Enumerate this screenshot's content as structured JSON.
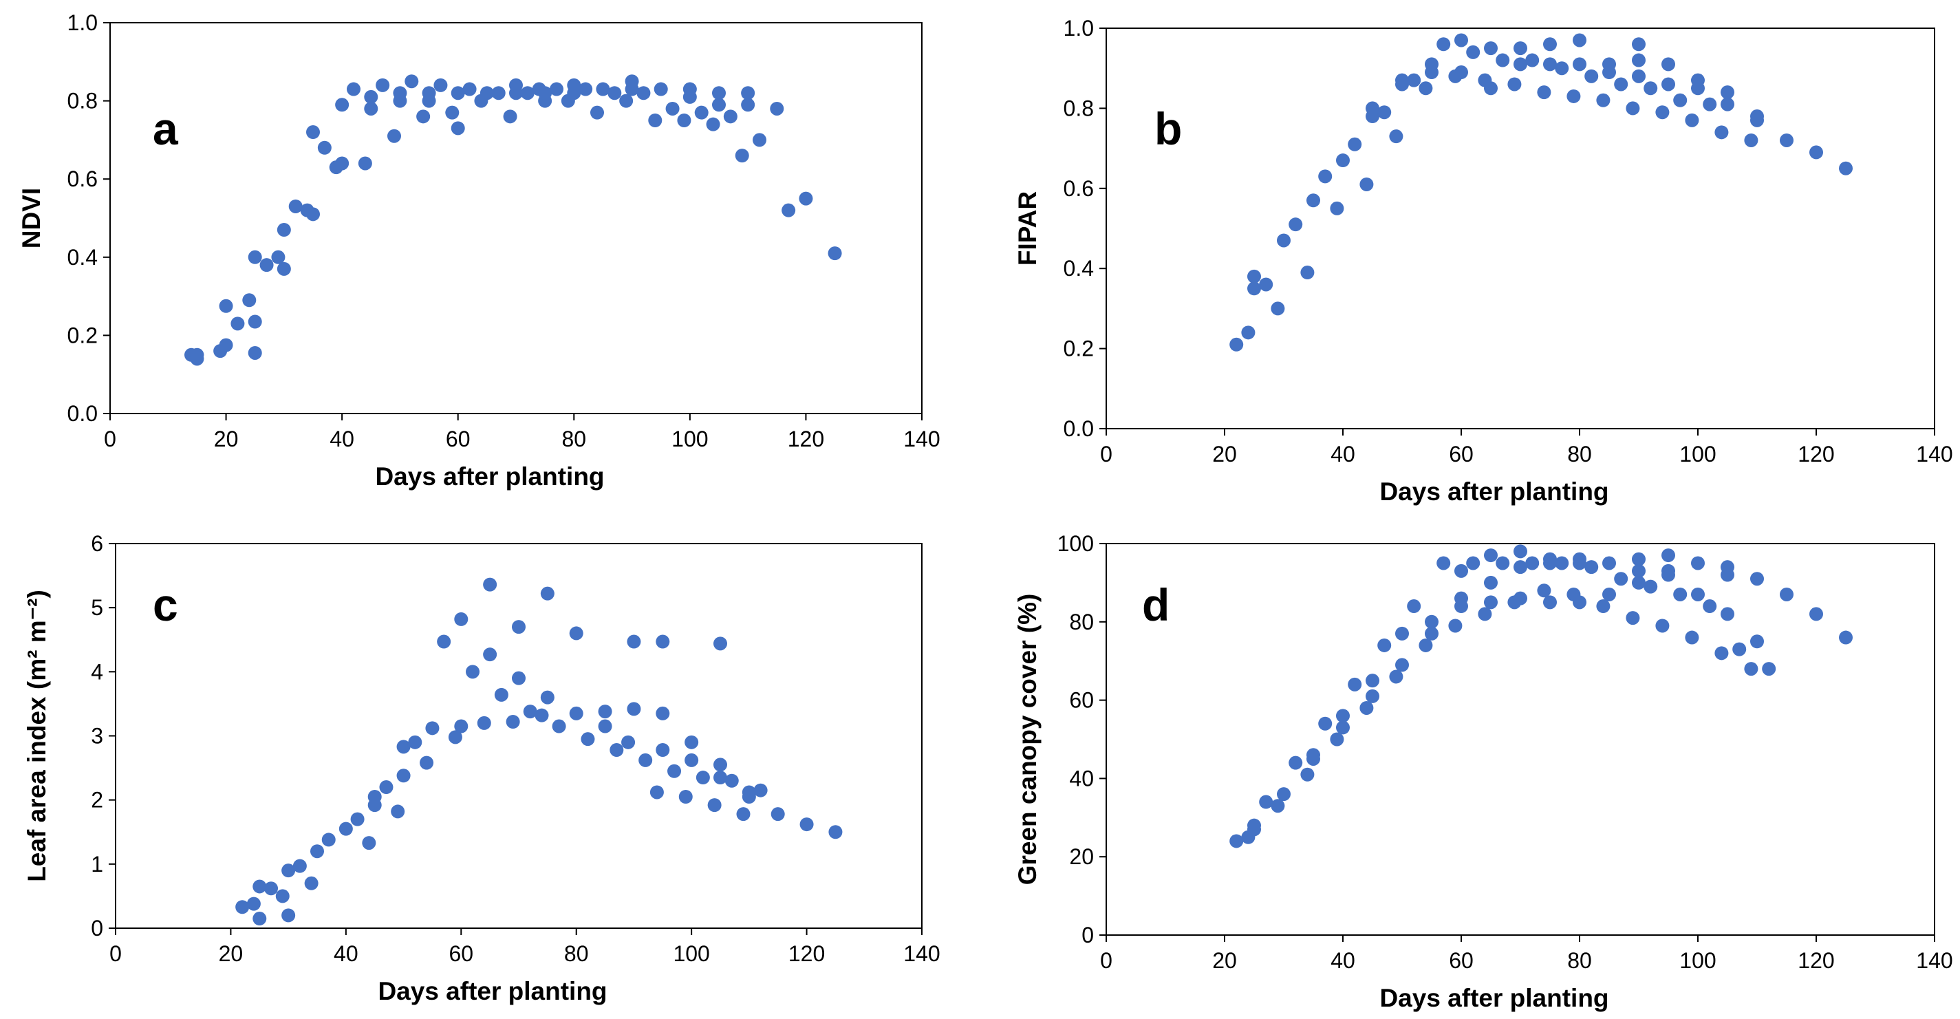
{
  "style": {
    "marker_color": "#4472C4",
    "axis_color": "#000000",
    "background": "#ffffff"
  },
  "chart_data": [
    {
      "type": "scatter",
      "panel_letter": "a",
      "xlabel": "Days after planting",
      "ylabel": "NDVI",
      "xlim": [
        0,
        140
      ],
      "ylim": [
        0,
        1.0
      ],
      "x_ticks": [
        0,
        20,
        40,
        60,
        80,
        100,
        120,
        140
      ],
      "y_ticks": [
        0.0,
        0.2,
        0.4,
        0.6,
        0.8,
        1.0
      ],
      "x_tick_labels": [
        "0",
        "20",
        "40",
        "60",
        "80",
        "100",
        "120",
        "140"
      ],
      "y_tick_labels": [
        "0.0",
        "0.2",
        "0.4",
        "0.6",
        "0.8",
        "1.0"
      ],
      "points": [
        [
          14,
          0.15
        ],
        [
          15,
          0.14
        ],
        [
          15,
          0.15
        ],
        [
          19,
          0.16
        ],
        [
          20,
          0.175
        ],
        [
          20,
          0.275
        ],
        [
          22,
          0.23
        ],
        [
          24,
          0.29
        ],
        [
          25,
          0.4
        ],
        [
          25,
          0.235
        ],
        [
          25,
          0.155
        ],
        [
          27,
          0.38
        ],
        [
          29,
          0.4
        ],
        [
          30,
          0.37
        ],
        [
          30,
          0.47
        ],
        [
          32,
          0.53
        ],
        [
          34,
          0.52
        ],
        [
          35,
          0.51
        ],
        [
          35,
          0.72
        ],
        [
          37,
          0.68
        ],
        [
          39,
          0.63
        ],
        [
          40,
          0.64
        ],
        [
          40,
          0.79
        ],
        [
          42,
          0.83
        ],
        [
          44,
          0.64
        ],
        [
          45,
          0.78
        ],
        [
          45,
          0.81
        ],
        [
          47,
          0.84
        ],
        [
          49,
          0.71
        ],
        [
          50,
          0.8
        ],
        [
          50,
          0.82
        ],
        [
          52,
          0.85
        ],
        [
          54,
          0.76
        ],
        [
          55,
          0.8
        ],
        [
          55,
          0.82
        ],
        [
          57,
          0.84
        ],
        [
          59,
          0.77
        ],
        [
          60,
          0.73
        ],
        [
          60,
          0.82
        ],
        [
          62,
          0.83
        ],
        [
          64,
          0.8
        ],
        [
          65,
          0.82
        ],
        [
          67,
          0.82
        ],
        [
          69,
          0.76
        ],
        [
          70,
          0.82
        ],
        [
          70,
          0.84
        ],
        [
          72,
          0.82
        ],
        [
          74,
          0.83
        ],
        [
          75,
          0.8
        ],
        [
          75,
          0.82
        ],
        [
          77,
          0.83
        ],
        [
          79,
          0.8
        ],
        [
          80,
          0.82
        ],
        [
          80,
          0.84
        ],
        [
          82,
          0.83
        ],
        [
          84,
          0.77
        ],
        [
          85,
          0.83
        ],
        [
          87,
          0.82
        ],
        [
          89,
          0.8
        ],
        [
          90,
          0.83
        ],
        [
          90,
          0.85
        ],
        [
          92,
          0.82
        ],
        [
          94,
          0.75
        ],
        [
          95,
          0.83
        ],
        [
          97,
          0.78
        ],
        [
          99,
          0.75
        ],
        [
          100,
          0.81
        ],
        [
          100,
          0.83
        ],
        [
          102,
          0.77
        ],
        [
          104,
          0.74
        ],
        [
          105,
          0.79
        ],
        [
          105,
          0.82
        ],
        [
          107,
          0.76
        ],
        [
          109,
          0.66
        ],
        [
          110,
          0.79
        ],
        [
          110,
          0.82
        ],
        [
          112,
          0.7
        ],
        [
          115,
          0.78
        ],
        [
          117,
          0.52
        ],
        [
          120,
          0.55
        ],
        [
          125,
          0.41
        ]
      ]
    },
    {
      "type": "scatter",
      "panel_letter": "b",
      "xlabel": "Days after planting",
      "ylabel": "FIPAR",
      "xlim": [
        0,
        140
      ],
      "ylim": [
        0,
        1.0
      ],
      "x_ticks": [
        0,
        20,
        40,
        60,
        80,
        100,
        120,
        140
      ],
      "y_ticks": [
        0.0,
        0.2,
        0.4,
        0.6,
        0.8,
        1.0
      ],
      "x_tick_labels": [
        "0",
        "20",
        "40",
        "60",
        "80",
        "100",
        "120",
        "140"
      ],
      "y_tick_labels": [
        "0.0",
        "0.2",
        "0.4",
        "0.6",
        "0.8",
        "1.0"
      ],
      "points": [
        [
          22,
          0.21
        ],
        [
          24,
          0.24
        ],
        [
          25,
          0.38
        ],
        [
          25,
          0.35
        ],
        [
          27,
          0.36
        ],
        [
          29,
          0.3
        ],
        [
          30,
          0.47
        ],
        [
          32,
          0.51
        ],
        [
          34,
          0.39
        ],
        [
          35,
          0.57
        ],
        [
          37,
          0.63
        ],
        [
          39,
          0.55
        ],
        [
          40,
          0.67
        ],
        [
          42,
          0.71
        ],
        [
          44,
          0.61
        ],
        [
          45,
          0.78
        ],
        [
          45,
          0.8
        ],
        [
          47,
          0.79
        ],
        [
          49,
          0.73
        ],
        [
          50,
          0.86
        ],
        [
          50,
          0.87
        ],
        [
          52,
          0.87
        ],
        [
          54,
          0.85
        ],
        [
          55,
          0.89
        ],
        [
          55,
          0.91
        ],
        [
          57,
          0.96
        ],
        [
          59,
          0.88
        ],
        [
          60,
          0.89
        ],
        [
          60,
          0.97
        ],
        [
          62,
          0.94
        ],
        [
          64,
          0.87
        ],
        [
          65,
          0.85
        ],
        [
          65,
          0.95
        ],
        [
          67,
          0.92
        ],
        [
          69,
          0.86
        ],
        [
          70,
          0.91
        ],
        [
          70,
          0.95
        ],
        [
          72,
          0.92
        ],
        [
          74,
          0.84
        ],
        [
          75,
          0.91
        ],
        [
          75,
          0.96
        ],
        [
          77,
          0.9
        ],
        [
          79,
          0.83
        ],
        [
          80,
          0.91
        ],
        [
          80,
          0.97
        ],
        [
          82,
          0.88
        ],
        [
          84,
          0.82
        ],
        [
          85,
          0.89
        ],
        [
          85,
          0.91
        ],
        [
          87,
          0.86
        ],
        [
          89,
          0.8
        ],
        [
          90,
          0.88
        ],
        [
          90,
          0.92
        ],
        [
          90,
          0.96
        ],
        [
          92,
          0.85
        ],
        [
          94,
          0.79
        ],
        [
          95,
          0.86
        ],
        [
          95,
          0.91
        ],
        [
          97,
          0.82
        ],
        [
          99,
          0.77
        ],
        [
          100,
          0.85
        ],
        [
          100,
          0.87
        ],
        [
          102,
          0.81
        ],
        [
          104,
          0.74
        ],
        [
          105,
          0.81
        ],
        [
          105,
          0.84
        ],
        [
          109,
          0.72
        ],
        [
          110,
          0.77
        ],
        [
          110,
          0.78
        ],
        [
          115,
          0.72
        ],
        [
          120,
          0.69
        ],
        [
          125,
          0.65
        ]
      ]
    },
    {
      "type": "scatter",
      "panel_letter": "c",
      "xlabel": "Days after planting",
      "ylabel": "Leaf area index (m² m⁻²)",
      "xlim": [
        0,
        140
      ],
      "ylim": [
        0,
        6
      ],
      "x_ticks": [
        0,
        20,
        40,
        60,
        80,
        100,
        120,
        140
      ],
      "y_ticks": [
        0,
        1,
        2,
        3,
        4,
        5,
        6
      ],
      "x_tick_labels": [
        "0",
        "20",
        "40",
        "60",
        "80",
        "100",
        "120",
        "140"
      ],
      "y_tick_labels": [
        "0",
        "1",
        "2",
        "3",
        "4",
        "5",
        "6"
      ],
      "points": [
        [
          22,
          0.33
        ],
        [
          24,
          0.38
        ],
        [
          25,
          0.65
        ],
        [
          25,
          0.15
        ],
        [
          27,
          0.62
        ],
        [
          29,
          0.5
        ],
        [
          30,
          0.9
        ],
        [
          30,
          0.2
        ],
        [
          32,
          0.97
        ],
        [
          34,
          0.7
        ],
        [
          35,
          1.2
        ],
        [
          37,
          1.38
        ],
        [
          40,
          1.55
        ],
        [
          42,
          1.7
        ],
        [
          44,
          1.33
        ],
        [
          45,
          2.05
        ],
        [
          45,
          1.92
        ],
        [
          47,
          2.2
        ],
        [
          49,
          1.82
        ],
        [
          50,
          2.38
        ],
        [
          50,
          2.83
        ],
        [
          52,
          2.9
        ],
        [
          54,
          2.58
        ],
        [
          55,
          3.12
        ],
        [
          57,
          4.47
        ],
        [
          59,
          2.98
        ],
        [
          60,
          3.15
        ],
        [
          60,
          4.82
        ],
        [
          62,
          4.0
        ],
        [
          64,
          3.2
        ],
        [
          65,
          4.27
        ],
        [
          65,
          5.36
        ],
        [
          67,
          3.64
        ],
        [
          69,
          3.22
        ],
        [
          70,
          3.9
        ],
        [
          70,
          4.7
        ],
        [
          72,
          3.38
        ],
        [
          74,
          3.32
        ],
        [
          75,
          3.6
        ],
        [
          75,
          5.22
        ],
        [
          77,
          3.15
        ],
        [
          80,
          3.35
        ],
        [
          80,
          4.6
        ],
        [
          82,
          2.95
        ],
        [
          85,
          3.15
        ],
        [
          85,
          3.38
        ],
        [
          87,
          2.78
        ],
        [
          89,
          2.9
        ],
        [
          90,
          3.42
        ],
        [
          90,
          4.47
        ],
        [
          92,
          2.62
        ],
        [
          94,
          2.12
        ],
        [
          95,
          2.78
        ],
        [
          95,
          3.35
        ],
        [
          95,
          4.47
        ],
        [
          97,
          2.45
        ],
        [
          99,
          2.05
        ],
        [
          100,
          2.62
        ],
        [
          100,
          2.9
        ],
        [
          102,
          2.35
        ],
        [
          104,
          1.92
        ],
        [
          105,
          2.35
        ],
        [
          105,
          2.55
        ],
        [
          105,
          4.44
        ],
        [
          107,
          2.3
        ],
        [
          109,
          1.78
        ],
        [
          110,
          2.05
        ],
        [
          110,
          2.12
        ],
        [
          112,
          2.15
        ],
        [
          115,
          1.78
        ],
        [
          120,
          1.62
        ],
        [
          125,
          1.5
        ]
      ]
    },
    {
      "type": "scatter",
      "panel_letter": "d",
      "xlabel": "Days after planting",
      "ylabel": "Green canopy cover (%)",
      "xlim": [
        0,
        140
      ],
      "ylim": [
        0,
        100
      ],
      "x_ticks": [
        0,
        20,
        40,
        60,
        80,
        100,
        120,
        140
      ],
      "y_ticks": [
        0,
        20,
        40,
        60,
        80,
        100
      ],
      "x_tick_labels": [
        "0",
        "20",
        "40",
        "60",
        "80",
        "100",
        "120",
        "140"
      ],
      "y_tick_labels": [
        "0",
        "20",
        "40",
        "60",
        "80",
        "100"
      ],
      "points": [
        [
          22,
          24
        ],
        [
          24,
          25
        ],
        [
          25,
          27
        ],
        [
          25,
          28
        ],
        [
          27,
          34
        ],
        [
          29,
          33
        ],
        [
          30,
          36
        ],
        [
          32,
          44
        ],
        [
          34,
          41
        ],
        [
          35,
          45
        ],
        [
          35,
          46
        ],
        [
          37,
          54
        ],
        [
          39,
          50
        ],
        [
          40,
          53
        ],
        [
          40,
          56
        ],
        [
          42,
          64
        ],
        [
          44,
          58
        ],
        [
          45,
          61
        ],
        [
          45,
          65
        ],
        [
          47,
          74
        ],
        [
          49,
          66
        ],
        [
          50,
          69
        ],
        [
          50,
          77
        ],
        [
          52,
          84
        ],
        [
          54,
          74
        ],
        [
          55,
          77
        ],
        [
          55,
          80
        ],
        [
          57,
          95
        ],
        [
          59,
          79
        ],
        [
          60,
          84
        ],
        [
          60,
          86
        ],
        [
          60,
          93
        ],
        [
          62,
          95
        ],
        [
          64,
          82
        ],
        [
          65,
          85
        ],
        [
          65,
          90
        ],
        [
          65,
          97
        ],
        [
          67,
          95
        ],
        [
          69,
          85
        ],
        [
          70,
          86
        ],
        [
          70,
          94
        ],
        [
          70,
          98
        ],
        [
          72,
          95
        ],
        [
          74,
          88
        ],
        [
          75,
          85
        ],
        [
          75,
          95
        ],
        [
          75,
          96
        ],
        [
          77,
          95
        ],
        [
          79,
          87
        ],
        [
          80,
          85
        ],
        [
          80,
          95
        ],
        [
          80,
          96
        ],
        [
          82,
          94
        ],
        [
          84,
          84
        ],
        [
          85,
          87
        ],
        [
          85,
          95
        ],
        [
          87,
          91
        ],
        [
          89,
          81
        ],
        [
          90,
          90
        ],
        [
          90,
          93
        ],
        [
          90,
          96
        ],
        [
          92,
          89
        ],
        [
          94,
          79
        ],
        [
          95,
          92
        ],
        [
          95,
          93
        ],
        [
          95,
          97
        ],
        [
          97,
          87
        ],
        [
          99,
          76
        ],
        [
          100,
          87
        ],
        [
          100,
          95
        ],
        [
          102,
          84
        ],
        [
          104,
          72
        ],
        [
          105,
          82
        ],
        [
          105,
          92
        ],
        [
          105,
          94
        ],
        [
          107,
          73
        ],
        [
          109,
          68
        ],
        [
          110,
          75
        ],
        [
          110,
          91
        ],
        [
          112,
          68
        ],
        [
          115,
          87
        ],
        [
          120,
          82
        ],
        [
          125,
          76
        ]
      ]
    }
  ]
}
